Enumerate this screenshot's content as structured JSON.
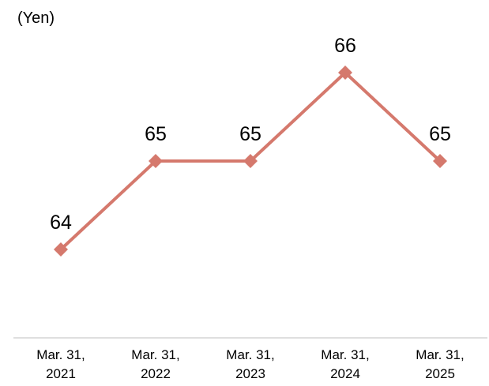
{
  "chart_data": {
    "type": "line",
    "unit_label": "(Yen)",
    "categories": [
      [
        "Mar. 31,",
        "2021"
      ],
      [
        "Mar. 31,",
        "2022"
      ],
      [
        "Mar. 31,",
        "2023"
      ],
      [
        "Mar. 31,",
        "2024"
      ],
      [
        "Mar. 31,",
        "2025"
      ]
    ],
    "series": [
      {
        "values": [
          64,
          65,
          65,
          66,
          65
        ],
        "data_labels": [
          "64",
          "65",
          "65",
          "66",
          "65"
        ],
        "color": "#D5796D",
        "marker": "diamond"
      }
    ],
    "axis_line_color": "#BFBFBF",
    "grid": false,
    "legend": "none"
  }
}
